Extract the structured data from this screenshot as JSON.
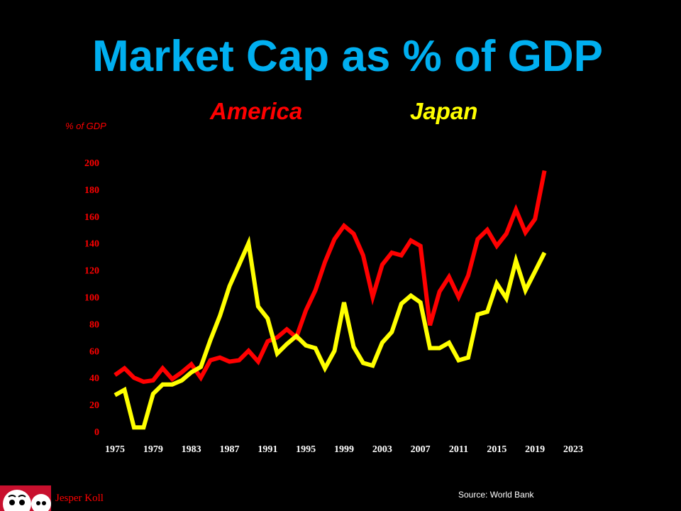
{
  "chart_data": {
    "type": "line",
    "title": "Market Cap as % of GDP",
    "ylabel": "% of GDP",
    "xlabel": "",
    "ylim": [
      0,
      200
    ],
    "yticks": [
      "0",
      "20",
      "40",
      "60",
      "80",
      "100",
      "120",
      "140",
      "160",
      "180",
      "200"
    ],
    "xticks": [
      "1975",
      "1979",
      "1983",
      "1987",
      "1991",
      "1995",
      "1999",
      "2003",
      "2007",
      "2011",
      "2015",
      "2019",
      "2023"
    ],
    "xlim": [
      1975,
      2023
    ],
    "x": [
      1975,
      1976,
      1977,
      1978,
      1979,
      1980,
      1981,
      1982,
      1983,
      1984,
      1985,
      1986,
      1987,
      1988,
      1989,
      1990,
      1991,
      1992,
      1993,
      1994,
      1995,
      1996,
      1997,
      1998,
      1999,
      2000,
      2001,
      2002,
      2003,
      2004,
      2005,
      2006,
      2007,
      2008,
      2009,
      2010,
      2011,
      2012,
      2013,
      2014,
      2015,
      2016,
      2017,
      2018,
      2019,
      2020
    ],
    "series": [
      {
        "name": "America",
        "color": "#ff0000",
        "values": [
          42,
          47,
          40,
          37,
          38,
          47,
          39,
          44,
          50,
          40,
          53,
          55,
          52,
          53,
          60,
          52,
          67,
          70,
          76,
          70,
          90,
          105,
          126,
          143,
          153,
          147,
          131,
          100,
          124,
          133,
          131,
          142,
          138,
          79,
          104,
          115,
          100,
          116,
          143,
          150,
          138,
          147,
          165,
          148,
          158,
          194
        ]
      },
      {
        "name": "Japan",
        "color": "#ffff00",
        "values": [
          27,
          31,
          3,
          3,
          28,
          35,
          35,
          38,
          44,
          48,
          68,
          86,
          108,
          124,
          140,
          93,
          84,
          58,
          65,
          71,
          64,
          62,
          47,
          60,
          96,
          63,
          51,
          49,
          66,
          74,
          95,
          101,
          96,
          62,
          62,
          66,
          53,
          55,
          87,
          89,
          110,
          99,
          127,
          105,
          119,
          133
        ]
      }
    ],
    "legend": [
      "America",
      "Japan"
    ],
    "legend_position": "top"
  },
  "footer": {
    "source": "Source: World Bank",
    "author": "Jesper Koll"
  },
  "icons": {
    "author_logo": "daruma-icon"
  }
}
